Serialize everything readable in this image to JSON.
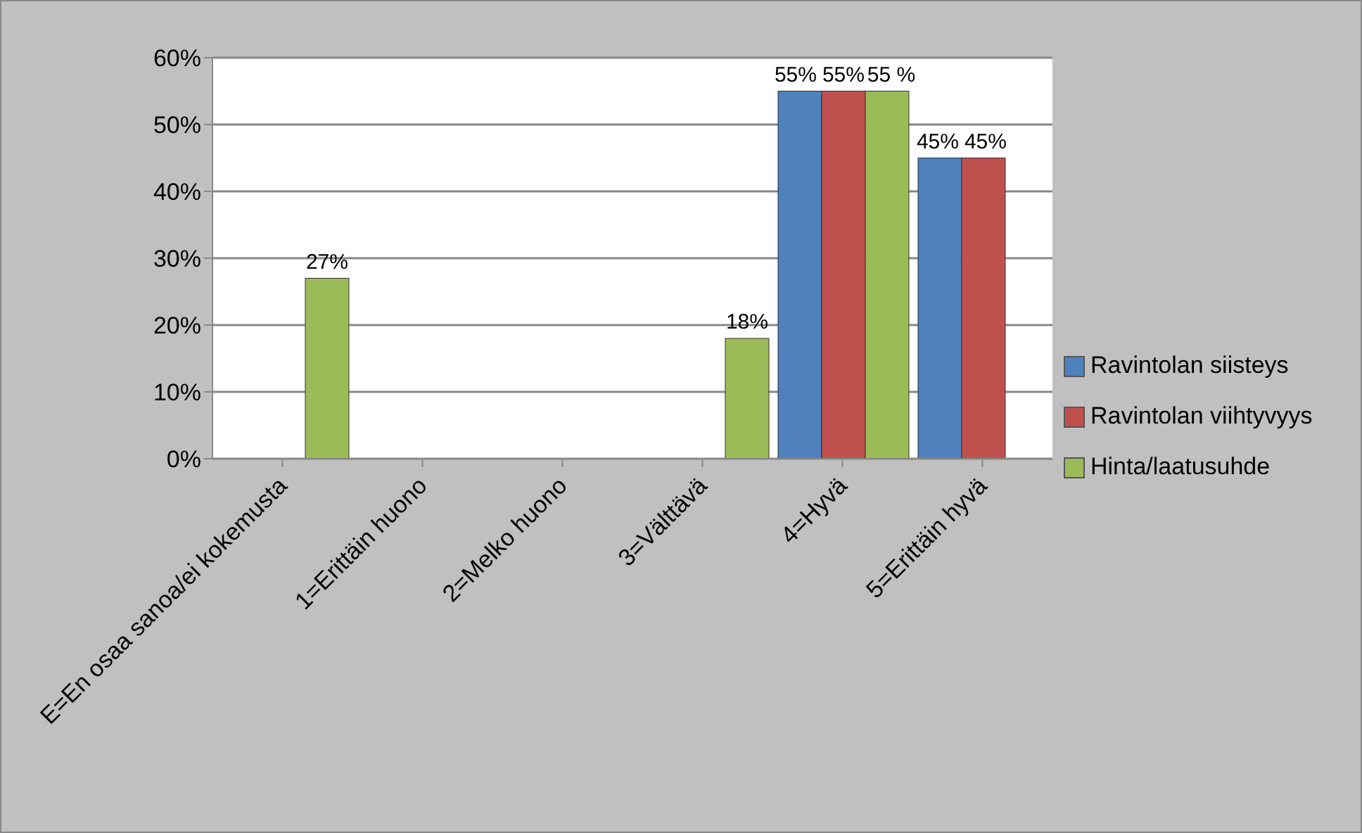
{
  "chart_data": {
    "type": "bar",
    "categories": [
      "E=En osaa sanoa/ei kokemusta",
      "1=Erittäin huono",
      "2=Melko huono",
      "3=Välttävä",
      "4=Hyvä",
      "5=Erittäin hyvä"
    ],
    "series": [
      {
        "name": "Ravintolan siisteys",
        "color": "#4f81bd",
        "values": [
          null,
          null,
          null,
          null,
          55,
          45
        ],
        "value_labels": [
          null,
          null,
          null,
          null,
          "55%",
          "45%"
        ]
      },
      {
        "name": "Ravintolan viihtyvyys",
        "color": "#c0504d",
        "values": [
          null,
          null,
          null,
          null,
          55,
          45
        ],
        "value_labels": [
          null,
          null,
          null,
          null,
          "55%",
          "45%"
        ]
      },
      {
        "name": "Hinta/laatusuhde",
        "color": "#9bbb59",
        "values": [
          27,
          null,
          null,
          18,
          55,
          null
        ],
        "value_labels": [
          "27%",
          null,
          null,
          "18%",
          "55 %",
          null
        ]
      }
    ],
    "ylim": [
      0,
      60
    ],
    "yticks": [
      {
        "value": 0,
        "label": "0%"
      },
      {
        "value": 10,
        "label": "10%"
      },
      {
        "value": 20,
        "label": "20%"
      },
      {
        "value": 30,
        "label": "30%"
      },
      {
        "value": 40,
        "label": "40%"
      },
      {
        "value": 50,
        "label": "50%"
      },
      {
        "value": 60,
        "label": "60%"
      }
    ],
    "grid": "y",
    "legend": "right"
  }
}
